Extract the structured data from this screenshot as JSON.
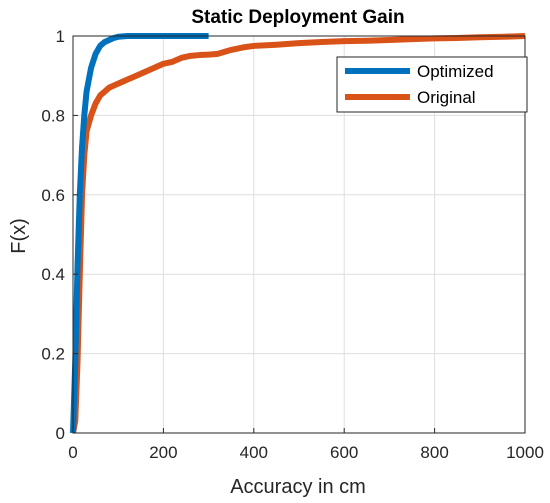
{
  "chart_data": {
    "type": "line",
    "title": "Static Deployment Gain",
    "xlabel": "Accuracy in cm",
    "ylabel": "F(x)",
    "xlim": [
      0,
      1000
    ],
    "ylim": [
      0,
      1
    ],
    "xticks": [
      0,
      200,
      400,
      600,
      800,
      1000
    ],
    "yticks": [
      0,
      0.2,
      0.4,
      0.6,
      0.8,
      1
    ],
    "xtick_labels": [
      "0",
      "200",
      "400",
      "600",
      "800",
      "1000"
    ],
    "ytick_labels": [
      "0",
      "0.2",
      "0.4",
      "0.6",
      "0.8",
      "1"
    ],
    "grid": true,
    "legend_position": "top-right",
    "series": [
      {
        "name": "Optimized",
        "color": "#0072BD",
        "x": [
          0,
          5,
          10,
          15,
          20,
          25,
          30,
          40,
          50,
          60,
          70,
          80,
          90,
          100,
          120,
          150,
          200,
          250,
          300
        ],
        "y": [
          0,
          0.18,
          0.42,
          0.6,
          0.72,
          0.8,
          0.86,
          0.92,
          0.955,
          0.975,
          0.985,
          0.99,
          0.995,
          0.998,
          1.0,
          1.0,
          1.0,
          1.0,
          1.0
        ]
      },
      {
        "name": "Original",
        "color": "#D95319",
        "x": [
          0,
          5,
          10,
          15,
          20,
          25,
          30,
          40,
          50,
          60,
          70,
          80,
          90,
          100,
          120,
          140,
          160,
          180,
          200,
          220,
          240,
          260,
          280,
          300,
          320,
          350,
          380,
          400,
          450,
          500,
          550,
          600,
          650,
          700,
          750,
          800,
          850,
          900,
          950,
          1000
        ],
        "y": [
          0,
          0.03,
          0.18,
          0.4,
          0.6,
          0.7,
          0.76,
          0.8,
          0.83,
          0.85,
          0.86,
          0.87,
          0.875,
          0.88,
          0.89,
          0.9,
          0.91,
          0.92,
          0.93,
          0.935,
          0.945,
          0.95,
          0.952,
          0.953,
          0.955,
          0.965,
          0.972,
          0.975,
          0.978,
          0.982,
          0.985,
          0.987,
          0.988,
          0.99,
          0.992,
          0.994,
          0.995,
          0.997,
          0.998,
          1.0
        ]
      }
    ]
  }
}
